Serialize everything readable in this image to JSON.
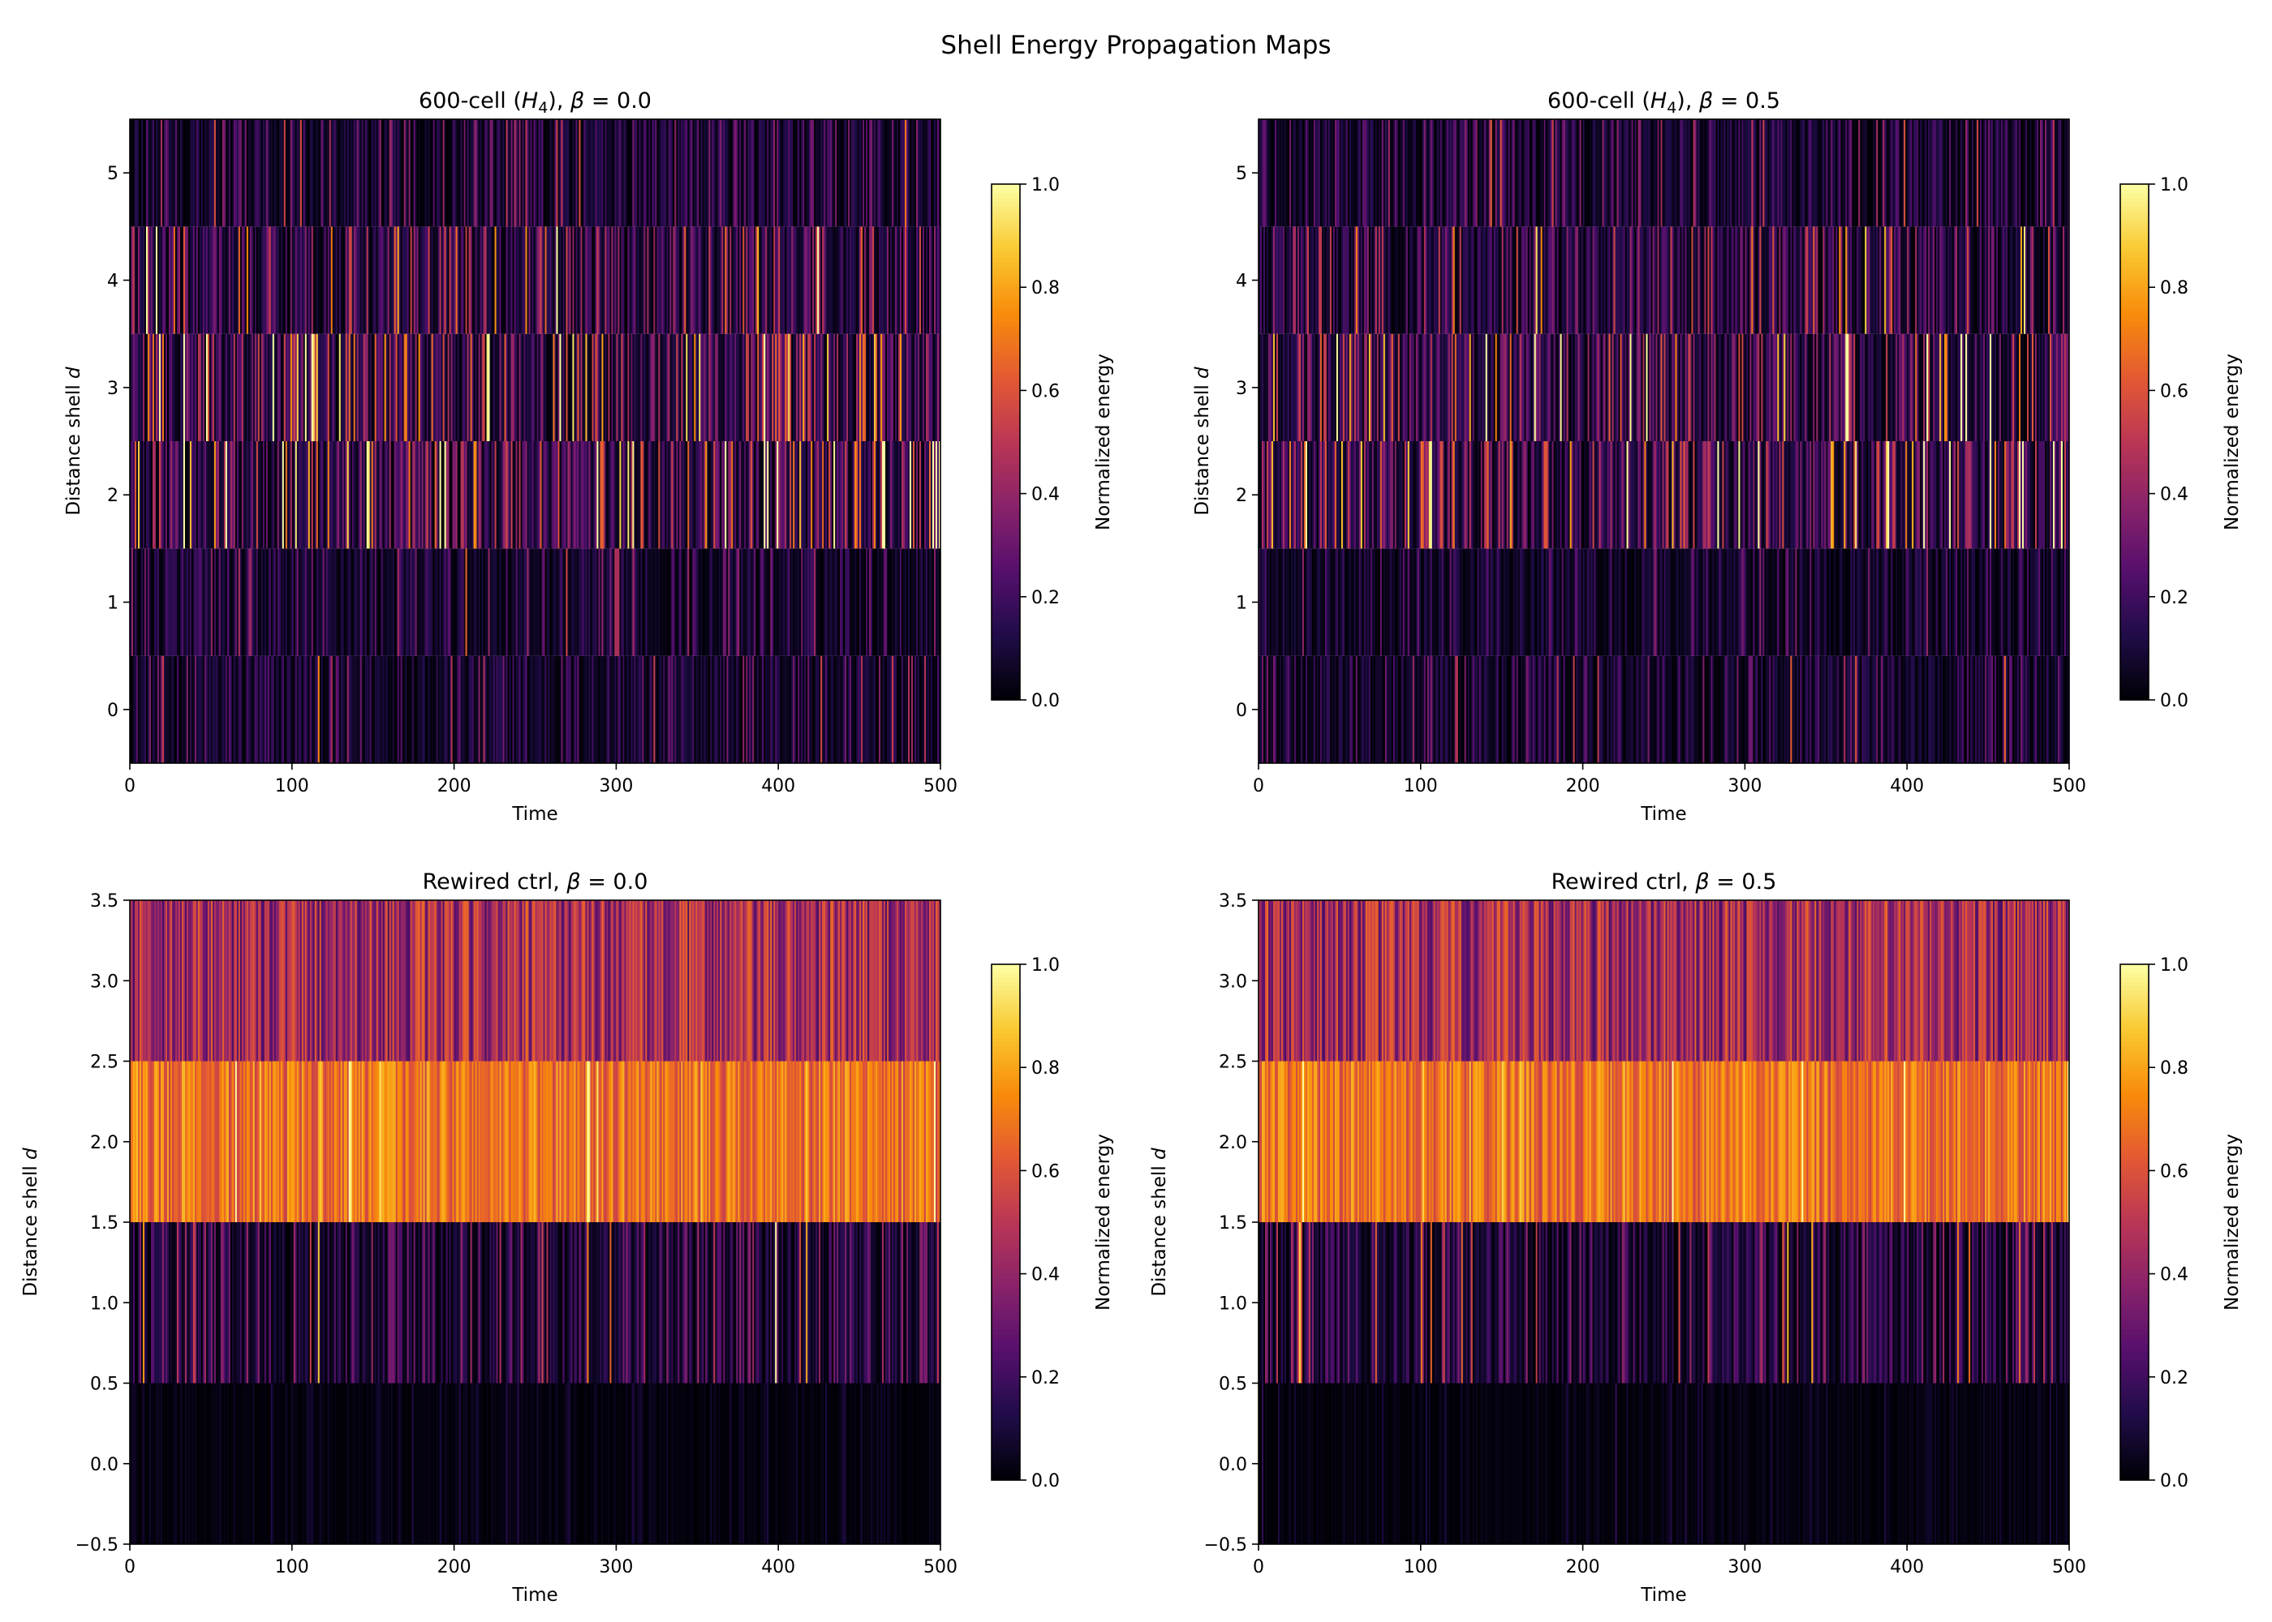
{
  "figure_title": "Shell Energy Propagation Maps",
  "colormap": "inferno",
  "chart_data": [
    {
      "type": "heatmap",
      "title": "600-cell (H4), β = 0.0",
      "title_parts": {
        "pre": "600-cell (",
        "sym": "H",
        "sub": "4",
        "post": "), ",
        "beta": "β",
        "eq": " = 0.0"
      },
      "xlabel": "Time",
      "ylabel": "Distance shell d",
      "xlim": [
        0,
        500
      ],
      "ylim": [
        -0.5,
        5.5
      ],
      "xticks": [
        "0",
        "100",
        "200",
        "300",
        "400",
        "500"
      ],
      "yticks": [
        "0",
        "1",
        "2",
        "3",
        "4",
        "5"
      ],
      "shells": [
        0,
        1,
        2,
        3,
        4,
        5
      ],
      "shell_mean_energy": [
        0.12,
        0.12,
        0.3,
        0.3,
        0.22,
        0.15
      ],
      "colorbar": {
        "label": "Normalized energy",
        "range": [
          0,
          1
        ],
        "ticks": [
          "0.0",
          "0.2",
          "0.4",
          "0.6",
          "0.8",
          "1.0"
        ]
      }
    },
    {
      "type": "heatmap",
      "title": "600-cell (H4), β = 0.5",
      "title_parts": {
        "pre": "600-cell (",
        "sym": "H",
        "sub": "4",
        "post": "), ",
        "beta": "β",
        "eq": " = 0.5"
      },
      "xlabel": "Time",
      "ylabel": "Distance shell d",
      "xlim": [
        0,
        500
      ],
      "ylim": [
        -0.5,
        5.5
      ],
      "xticks": [
        "0",
        "100",
        "200",
        "300",
        "400",
        "500"
      ],
      "yticks": [
        "0",
        "1",
        "2",
        "3",
        "4",
        "5"
      ],
      "shells": [
        0,
        1,
        2,
        3,
        4,
        5
      ],
      "shell_mean_energy": [
        0.12,
        0.1,
        0.28,
        0.26,
        0.2,
        0.14
      ],
      "colorbar": {
        "label": "Normalized energy",
        "range": [
          0,
          1
        ],
        "ticks": [
          "0.0",
          "0.2",
          "0.4",
          "0.6",
          "0.8",
          "1.0"
        ]
      }
    },
    {
      "type": "heatmap",
      "title": "Rewired ctrl, β = 0.0",
      "title_parts": {
        "pre": "Rewired ctrl, ",
        "sym": "",
        "sub": "",
        "post": "",
        "beta": "β",
        "eq": " = 0.0"
      },
      "xlabel": "Time",
      "ylabel": "Distance shell d",
      "xlim": [
        0,
        500
      ],
      "ylim": [
        -0.5,
        3.5
      ],
      "xticks": [
        "0",
        "100",
        "200",
        "300",
        "400",
        "500"
      ],
      "yticks": [
        "−0.5",
        "0.0",
        "0.5",
        "1.0",
        "1.5",
        "2.0",
        "2.5",
        "3.0",
        "3.5"
      ],
      "shells": [
        0,
        1,
        2,
        3
      ],
      "shell_mean_energy": [
        0.03,
        0.17,
        0.68,
        0.44
      ],
      "colorbar": {
        "label": "Normalized energy",
        "range": [
          0,
          1
        ],
        "ticks": [
          "0.0",
          "0.2",
          "0.4",
          "0.6",
          "0.8",
          "1.0"
        ]
      }
    },
    {
      "type": "heatmap",
      "title": "Rewired ctrl, β = 0.5",
      "title_parts": {
        "pre": "Rewired ctrl, ",
        "sym": "",
        "sub": "",
        "post": "",
        "beta": "β",
        "eq": " = 0.5"
      },
      "xlabel": "Time",
      "ylabel": "Distance shell d",
      "xlim": [
        0,
        500
      ],
      "ylim": [
        -0.5,
        3.5
      ],
      "xticks": [
        "0",
        "100",
        "200",
        "300",
        "400",
        "500"
      ],
      "yticks": [
        "−0.5",
        "0.0",
        "0.5",
        "1.0",
        "1.5",
        "2.0",
        "2.5",
        "3.0",
        "3.5"
      ],
      "shells": [
        0,
        1,
        2,
        3
      ],
      "shell_mean_energy": [
        0.03,
        0.17,
        0.68,
        0.44
      ],
      "colorbar": {
        "label": "Normalized energy",
        "range": [
          0,
          1
        ],
        "ticks": [
          "0.0",
          "0.2",
          "0.4",
          "0.6",
          "0.8",
          "1.0"
        ]
      }
    }
  ]
}
